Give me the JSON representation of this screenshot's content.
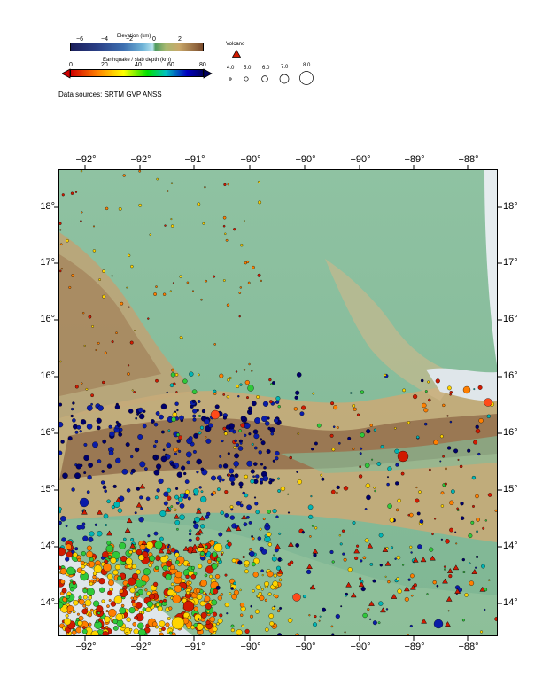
{
  "legend": {
    "elevation": {
      "title": "Elevation (km)",
      "ticks": [
        "−6",
        "−4",
        "−2",
        "0",
        "2"
      ]
    },
    "depth": {
      "title": "Earthquake / slab depth (km)",
      "ticks": [
        "0",
        "20",
        "40",
        "60",
        "80"
      ]
    },
    "volcano": {
      "title": "Volcano"
    },
    "magnitude": {
      "labels": [
        "4.0",
        "5.0",
        "6.0",
        "7.0",
        "8.0"
      ]
    },
    "sources": "Data sources: SRTM GVP ANSS"
  },
  "map": {
    "top_ticks": [
      "−92°",
      "−92°",
      "−91°",
      "−90°",
      "−90°",
      "−90°",
      "−89°",
      "−88°"
    ],
    "bottom_ticks": [
      "−92°",
      "−92°",
      "−91°",
      "−90°",
      "−90°",
      "−90°",
      "−89°",
      "−88°"
    ],
    "left_ticks": [
      "18°",
      "17°",
      "16°",
      "16°",
      "16°",
      "15°",
      "14°",
      "14°"
    ],
    "right_ticks": [
      "18°",
      "17°",
      "16°",
      "16°",
      "16°",
      "15°",
      "14°",
      "14°"
    ],
    "colors": {
      "lowland": "#84bb98",
      "highland": "#c9ae7c",
      "mountain": "#8d6746",
      "ocean": "#dfe6ea",
      "shallow": "#d11a00",
      "mid": "#ffd400",
      "deep": "#0a1ca8"
    }
  }
}
